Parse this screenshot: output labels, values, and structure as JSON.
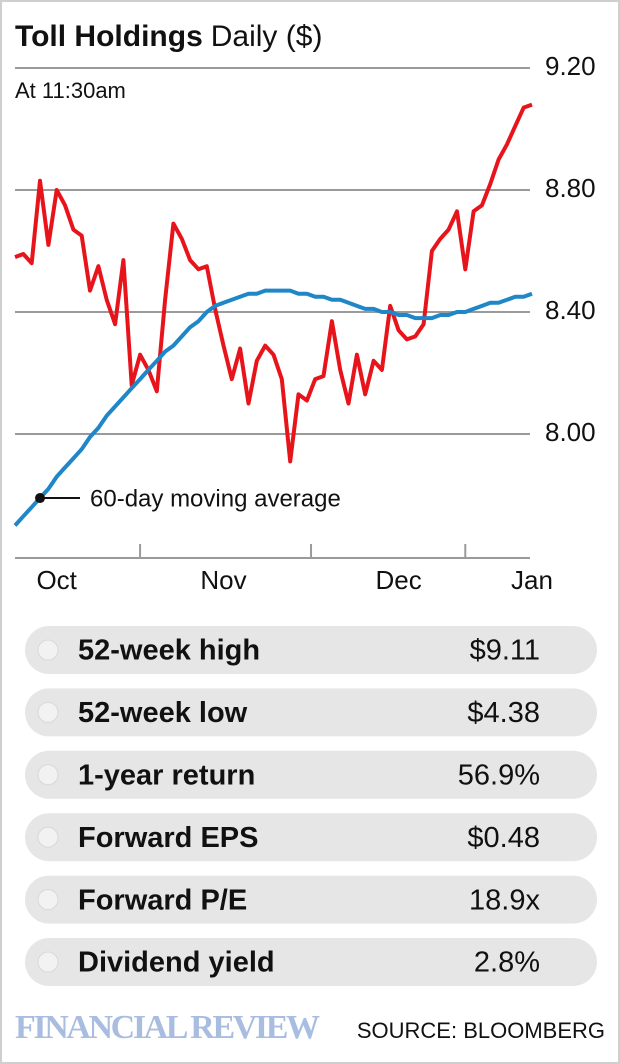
{
  "chart_data": {
    "type": "line",
    "title": "Toll Holdings",
    "unit": "Daily ($)",
    "subtitle": "At 11:30am",
    "categories": [
      null,
      null,
      null,
      null,
      null,
      "Oct",
      null,
      null,
      null,
      null,
      null,
      null,
      null,
      null,
      null,
      null,
      null,
      null,
      null,
      null,
      null,
      null,
      null,
      null,
      null,
      "Nov",
      null,
      null,
      null,
      null,
      null,
      null,
      null,
      null,
      null,
      null,
      null,
      null,
      null,
      null,
      null,
      null,
      null,
      null,
      null,
      null,
      "Dec",
      null,
      null,
      null,
      null,
      null,
      null,
      null,
      null,
      null,
      null,
      null,
      null,
      null,
      null,
      null,
      "Jan"
    ],
    "series": [
      {
        "color": "#e8141b",
        "values": [
          8.58,
          8.59,
          8.56,
          8.83,
          8.62,
          8.8,
          8.75,
          8.67,
          8.65,
          8.47,
          8.55,
          8.44,
          8.36,
          8.57,
          8.16,
          8.26,
          8.21,
          8.14,
          8.44,
          8.69,
          8.64,
          8.57,
          8.54,
          8.55,
          8.41,
          8.29,
          8.18,
          8.28,
          8.1,
          8.24,
          8.29,
          8.26,
          8.18,
          7.91,
          8.13,
          8.11,
          8.18,
          8.19,
          8.37,
          8.21,
          8.1,
          8.26,
          8.13,
          8.24,
          8.21,
          8.42,
          8.34,
          8.31,
          8.32,
          8.36,
          8.6,
          8.64,
          8.67,
          8.73,
          8.54,
          8.73,
          8.75,
          8.82,
          8.9,
          8.95,
          9.01,
          9.07,
          9.08
        ]
      },
      {
        "name": "60-day moving average",
        "color": "#1f86c8",
        "values": [
          7.7,
          7.73,
          7.76,
          7.79,
          7.82,
          7.86,
          7.89,
          7.92,
          7.95,
          7.99,
          8.02,
          8.06,
          8.09,
          8.12,
          8.15,
          8.18,
          8.21,
          8.24,
          8.27,
          8.29,
          8.32,
          8.35,
          8.37,
          8.4,
          8.42,
          8.43,
          8.44,
          8.45,
          8.46,
          8.46,
          8.47,
          8.47,
          8.47,
          8.47,
          8.46,
          8.46,
          8.45,
          8.45,
          8.44,
          8.44,
          8.43,
          8.42,
          8.41,
          8.41,
          8.4,
          8.4,
          8.39,
          8.39,
          8.38,
          8.38,
          8.38,
          8.39,
          8.39,
          8.4,
          8.4,
          8.41,
          8.42,
          8.43,
          8.43,
          8.44,
          8.45,
          8.45,
          8.46
        ]
      }
    ],
    "ylim": [
      7.6,
      9.2
    ],
    "yticks": [
      {
        "value": 8,
        "label": "8.00"
      },
      {
        "value": 8.4,
        "label": "8.40"
      },
      {
        "value": 8.8,
        "label": "8.80"
      },
      {
        "value": 9.2,
        "label": "9.20"
      }
    ],
    "grid": true,
    "stats": [
      {
        "label": "52-week high",
        "value": "$9.11"
      },
      {
        "label": "52-week low",
        "value": "$4.38"
      },
      {
        "label": "1-year return",
        "value": "56.9%"
      },
      {
        "label": "Forward EPS",
        "value": "$0.48"
      },
      {
        "label": "Forward P/E",
        "value": "18.9x"
      },
      {
        "label": "Dividend yield",
        "value": "2.8%"
      }
    ],
    "brand": "FINANCIAL REVIEW",
    "source": "SOURCE: BLOOMBERG"
  }
}
